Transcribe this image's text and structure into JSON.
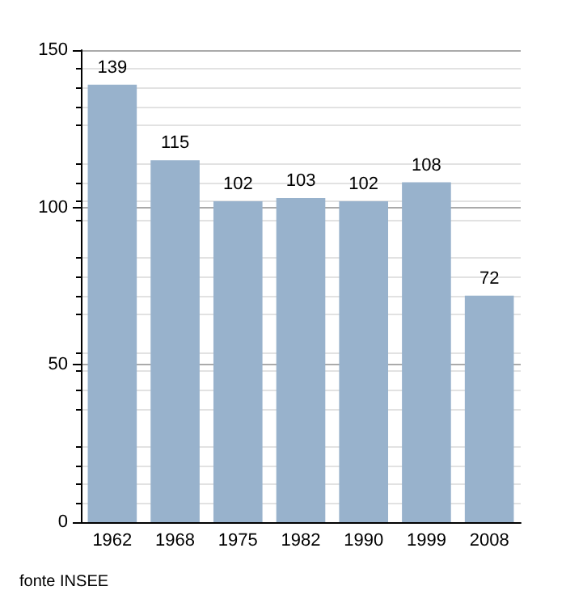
{
  "chart_data": {
    "type": "bar",
    "categories": [
      "1962",
      "1968",
      "1975",
      "1982",
      "1990",
      "1999",
      "2008"
    ],
    "values": [
      139,
      115,
      102,
      103,
      102,
      108,
      72
    ],
    "color": "#98b2cc",
    "ylim": [
      0,
      150
    ],
    "yticks": [
      0,
      50,
      100,
      150
    ],
    "grid": true,
    "data_labels": true,
    "annotations": [
      "fonte INSEE"
    ]
  }
}
